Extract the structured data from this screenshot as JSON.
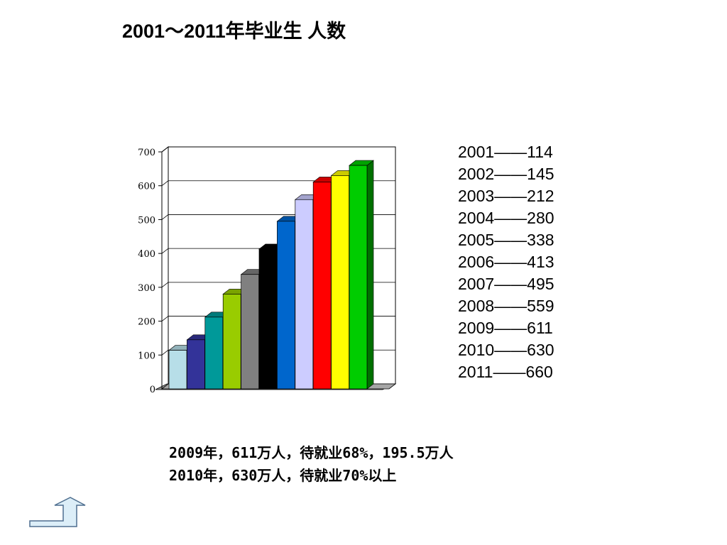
{
  "slide": {
    "title": "2001～2011年毕业生 人数",
    "notes": [
      "2009年，611万人，待就业68%，195.5万人",
      "2010年，630万人，待就业70%以上"
    ],
    "nav_icon": "return-arrow-icon"
  },
  "legend_rows": [
    "2001——114",
    "2002——145",
    "2003——212",
    "2004——280",
    "2005——338",
    "2006——413",
    "2007——495",
    "2008——559",
    "2009——611",
    "2010——630",
    "2011——660"
  ],
  "chart_data": {
    "type": "bar",
    "categories": [
      "2001",
      "2002",
      "2003",
      "2004",
      "2005",
      "2006",
      "2007",
      "2008",
      "2009",
      "2010",
      "2011"
    ],
    "values": [
      114,
      145,
      212,
      280,
      338,
      413,
      495,
      559,
      611,
      630,
      660
    ],
    "colors": [
      "#B7DEE8",
      "#333399",
      "#009999",
      "#99CC00",
      "#808080",
      "#000000",
      "#0066CC",
      "#CCCCFF",
      "#FF0000",
      "#FFFF00",
      "#00CC00"
    ],
    "yticks": [
      "0",
      "100",
      "200",
      "300",
      "400",
      "500",
      "600",
      "700"
    ],
    "ylim": [
      0,
      700
    ],
    "grid": true,
    "style": "3d"
  }
}
